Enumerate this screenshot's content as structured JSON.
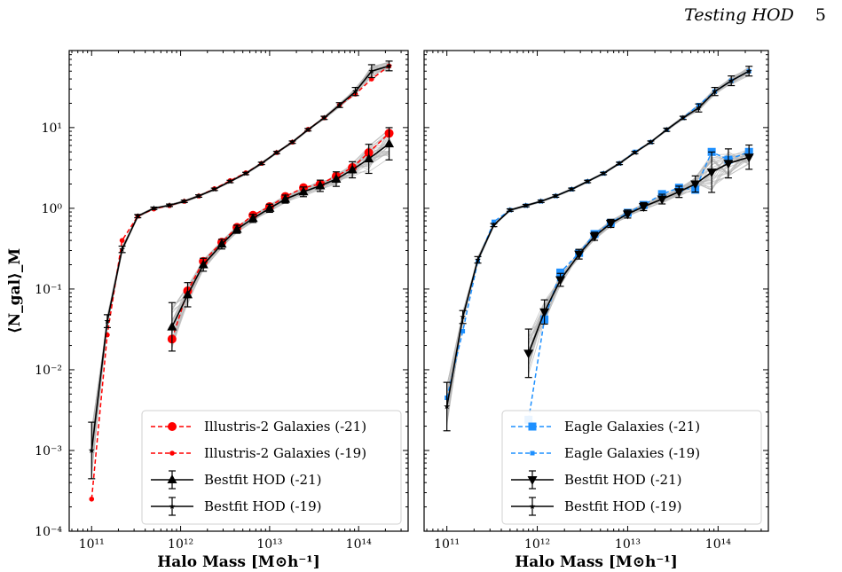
{
  "header": {
    "running_title": "Testing HOD",
    "page_number": "5"
  },
  "colors": {
    "illustris": "#ff0000",
    "eagle": "#1e90ff",
    "hod": "#000000",
    "realizations": "#b8b8b8"
  },
  "chart_data": [
    {
      "type": "line",
      "panel": "left",
      "xlabel": "Halo Mass [M⊙h⁻¹]",
      "ylabel": "⟨N_gal⟩_M",
      "xscale": "log",
      "yscale": "log",
      "xlim": [
        56000000000.0,
        360000000000000.0
      ],
      "ylim": [
        0.0001,
        90
      ],
      "xticks": [
        "10¹¹",
        "10¹²",
        "10¹³",
        "10¹⁴"
      ],
      "yticks": [
        "10⁻⁴",
        "10⁻³",
        "10⁻²",
        "10⁻¹",
        "10⁰",
        "10¹"
      ],
      "legend_position": "lower-right",
      "legend": [
        "Illustris-2 Galaxies (-21)",
        "Illustris-2 Galaxies (-19)",
        "Bestfit HOD (-21)",
        "Bestfit HOD (-19)"
      ],
      "series": [
        {
          "name": "Illustris-2 Galaxies (-21)",
          "style": "dashed",
          "marker": "circle-large",
          "color": "#ff0000",
          "x": [
            800000000000.0,
            1200000000000.0,
            1800000000000.0,
            2900000000000.0,
            4300000000000.0,
            6500000000000.0,
            10000000000000.0,
            15000000000000.0,
            24000000000000.0,
            37000000000000.0,
            56000000000000.0,
            85000000000000.0,
            130000000000000.0,
            220000000000000.0
          ],
          "y": [
            0.024,
            0.095,
            0.22,
            0.38,
            0.58,
            0.82,
            1.05,
            1.4,
            1.8,
            2.0,
            2.5,
            3.2,
            4.9,
            8.5
          ]
        },
        {
          "name": "Illustris-2 Galaxies (-19)",
          "style": "dashed",
          "marker": "circle-small",
          "color": "#ff0000",
          "x": [
            100000000000.0,
            150000000000.0,
            220000000000.0,
            330000000000.0,
            500000000000.0,
            750000000000.0,
            1100000000000.0,
            1600000000000.0,
            2400000000000.0,
            3600000000000.0,
            5400000000000.0,
            8100000000000.0,
            12000000000000.0,
            18000000000000.0,
            27000000000000.0,
            41000000000000.0,
            61000000000000.0,
            92000000000000.0,
            140000000000000.0,
            220000000000000.0
          ],
          "y": [
            0.00025,
            0.027,
            0.4,
            0.8,
            0.98,
            1.08,
            1.22,
            1.42,
            1.75,
            2.2,
            2.75,
            3.6,
            4.9,
            6.6,
            9.5,
            13.2,
            19,
            26,
            40,
            58
          ]
        },
        {
          "name": "Bestfit HOD (-21)",
          "style": "solid",
          "marker": "triangle-up",
          "color": "#000000",
          "x": [
            800000000000.0,
            1200000000000.0,
            1800000000000.0,
            2900000000000.0,
            4300000000000.0,
            6500000000000.0,
            10000000000000.0,
            15000000000000.0,
            24000000000000.0,
            37000000000000.0,
            56000000000000.0,
            85000000000000.0,
            130000000000000.0,
            220000000000000.0
          ],
          "y": [
            0.034,
            0.085,
            0.2,
            0.36,
            0.55,
            0.75,
            1.0,
            1.3,
            1.6,
            1.9,
            2.3,
            3.0,
            4.1,
            6.3
          ],
          "err": [
            0.3,
            0.15,
            0.08,
            0.06,
            0.05,
            0.05,
            0.05,
            0.05,
            0.06,
            0.07,
            0.09,
            0.1,
            0.18,
            0.2
          ]
        },
        {
          "name": "Bestfit HOD (-19)",
          "style": "solid",
          "marker": "star",
          "color": "#000000",
          "x": [
            100000000000.0,
            150000000000.0,
            220000000000.0,
            330000000000.0,
            500000000000.0,
            750000000000.0,
            1100000000000.0,
            1600000000000.0,
            2400000000000.0,
            3600000000000.0,
            5400000000000.0,
            8100000000000.0,
            12000000000000.0,
            18000000000000.0,
            27000000000000.0,
            41000000000000.0,
            61000000000000.0,
            92000000000000.0,
            140000000000000.0,
            220000000000000.0
          ],
          "y": [
            0.001,
            0.04,
            0.31,
            0.8,
            1.0,
            1.09,
            1.22,
            1.42,
            1.72,
            2.15,
            2.7,
            3.6,
            4.9,
            6.6,
            9.4,
            13.2,
            19,
            28,
            50,
            58
          ],
          "err": [
            0.35,
            0.08,
            0.04,
            0.02,
            0.015,
            0.015,
            0.015,
            0.015,
            0.015,
            0.015,
            0.015,
            0.015,
            0.015,
            0.015,
            0.015,
            0.02,
            0.03,
            0.05,
            0.08,
            0.06
          ]
        }
      ]
    },
    {
      "type": "line",
      "panel": "right",
      "xlabel": "Halo Mass [M⊙h⁻¹]",
      "xscale": "log",
      "yscale": "log",
      "xlim": [
        56000000000.0,
        360000000000000.0
      ],
      "ylim": [
        0.0001,
        90
      ],
      "xticks": [
        "10¹¹",
        "10¹²",
        "10¹³",
        "10¹⁴"
      ],
      "legend_position": "lower-right",
      "legend": [
        "Eagle Galaxies (-21)",
        "Eagle Galaxies (-19)",
        "Bestfit HOD (-21)",
        "Bestfit HOD (-19)"
      ],
      "series": [
        {
          "name": "Eagle Galaxies (-21)",
          "style": "dashed",
          "marker": "square-large",
          "color": "#1e90ff",
          "x": [
            800000000000.0,
            1200000000000.0,
            1800000000000.0,
            2900000000000.0,
            4300000000000.0,
            6500000000000.0,
            10000000000000.0,
            15000000000000.0,
            24000000000000.0,
            37000000000000.0,
            56000000000000.0,
            85000000000000.0,
            130000000000000.0,
            220000000000000.0
          ],
          "y": [
            0.0024,
            0.042,
            0.16,
            0.28,
            0.48,
            0.66,
            0.88,
            1.1,
            1.5,
            1.8,
            1.7,
            5.0,
            4.0,
            5.0
          ]
        },
        {
          "name": "Eagle Galaxies (-19)",
          "style": "dashed",
          "marker": "square-small",
          "color": "#1e90ff",
          "x": [
            100000000000.0,
            150000000000.0,
            220000000000.0,
            330000000000.0,
            500000000000.0,
            750000000000.0,
            1100000000000.0,
            1600000000000.0,
            2400000000000.0,
            3600000000000.0,
            5400000000000.0,
            8100000000000.0,
            12000000000000.0,
            18000000000000.0,
            27000000000000.0,
            41000000000000.0,
            61000000000000.0,
            92000000000000.0,
            140000000000000.0,
            220000000000000.0
          ],
          "y": [
            0.0045,
            0.03,
            0.22,
            0.68,
            0.95,
            1.08,
            1.22,
            1.42,
            1.72,
            2.15,
            2.7,
            3.6,
            5.0,
            6.6,
            9.4,
            13.2,
            19,
            28,
            38,
            50
          ]
        },
        {
          "name": "Bestfit HOD (-21)",
          "style": "solid",
          "marker": "triangle-down",
          "color": "#000000",
          "x": [
            800000000000.0,
            1200000000000.0,
            1800000000000.0,
            2900000000000.0,
            4300000000000.0,
            6500000000000.0,
            10000000000000.0,
            15000000000000.0,
            24000000000000.0,
            37000000000000.0,
            56000000000000.0,
            85000000000000.0,
            130000000000000.0,
            220000000000000.0
          ],
          "y": [
            0.016,
            0.052,
            0.13,
            0.27,
            0.45,
            0.65,
            0.85,
            1.05,
            1.3,
            1.6,
            2.0,
            2.8,
            3.6,
            4.3
          ],
          "err": [
            0.3,
            0.15,
            0.08,
            0.06,
            0.05,
            0.05,
            0.05,
            0.05,
            0.06,
            0.07,
            0.1,
            0.25,
            0.18,
            0.15
          ]
        },
        {
          "name": "Bestfit HOD (-19)",
          "style": "solid",
          "marker": "star",
          "color": "#000000",
          "x": [
            100000000000.0,
            150000000000.0,
            220000000000.0,
            330000000000.0,
            500000000000.0,
            750000000000.0,
            1100000000000.0,
            1600000000000.0,
            2400000000000.0,
            3600000000000.0,
            5400000000000.0,
            8100000000000.0,
            12000000000000.0,
            18000000000000.0,
            27000000000000.0,
            41000000000000.0,
            61000000000000.0,
            92000000000000.0,
            140000000000000.0,
            220000000000000.0
          ],
          "y": [
            0.0035,
            0.045,
            0.23,
            0.62,
            0.95,
            1.08,
            1.22,
            1.42,
            1.72,
            2.15,
            2.7,
            3.6,
            4.9,
            6.6,
            9.4,
            13.2,
            17.5,
            28,
            38,
            50
          ],
          "err": [
            0.3,
            0.08,
            0.04,
            0.02,
            0.015,
            0.015,
            0.015,
            0.015,
            0.015,
            0.015,
            0.015,
            0.015,
            0.015,
            0.015,
            0.02,
            0.02,
            0.05,
            0.05,
            0.06,
            0.06
          ]
        }
      ]
    }
  ]
}
